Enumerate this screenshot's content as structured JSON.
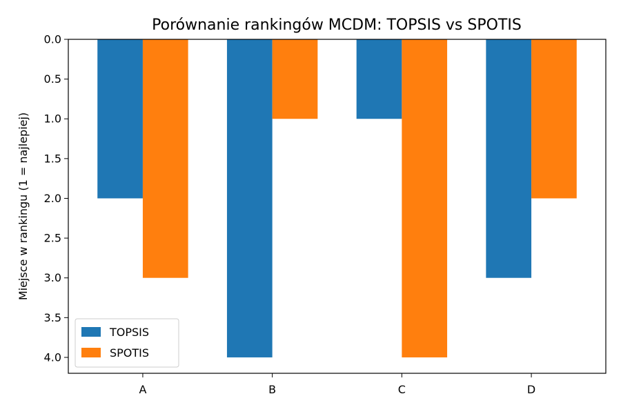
{
  "chart_data": {
    "type": "bar",
    "title": "Porównanie rankingów MCDM: TOPSIS vs SPOTIS",
    "xlabel": "",
    "ylabel": "Miejsce w rankingu (1 = najlepiej)",
    "categories": [
      "A",
      "B",
      "C",
      "D"
    ],
    "series": [
      {
        "name": "TOPSIS",
        "values": [
          2,
          4,
          1,
          3
        ],
        "color": "#1f77b4"
      },
      {
        "name": "SPOTIS",
        "values": [
          3,
          1,
          4,
          2
        ],
        "color": "#ff7f0e"
      }
    ],
    "ylim": [
      0,
      4.2
    ],
    "y_inverted": true,
    "yticks": [
      0.0,
      0.5,
      1.0,
      1.5,
      2.0,
      2.5,
      3.0,
      3.5,
      4.0
    ],
    "ytick_labels": [
      "0.0",
      "0.5",
      "1.0",
      "1.5",
      "2.0",
      "2.5",
      "3.0",
      "3.5",
      "4.0"
    ],
    "grid": false,
    "legend_position": "bottom-left"
  }
}
